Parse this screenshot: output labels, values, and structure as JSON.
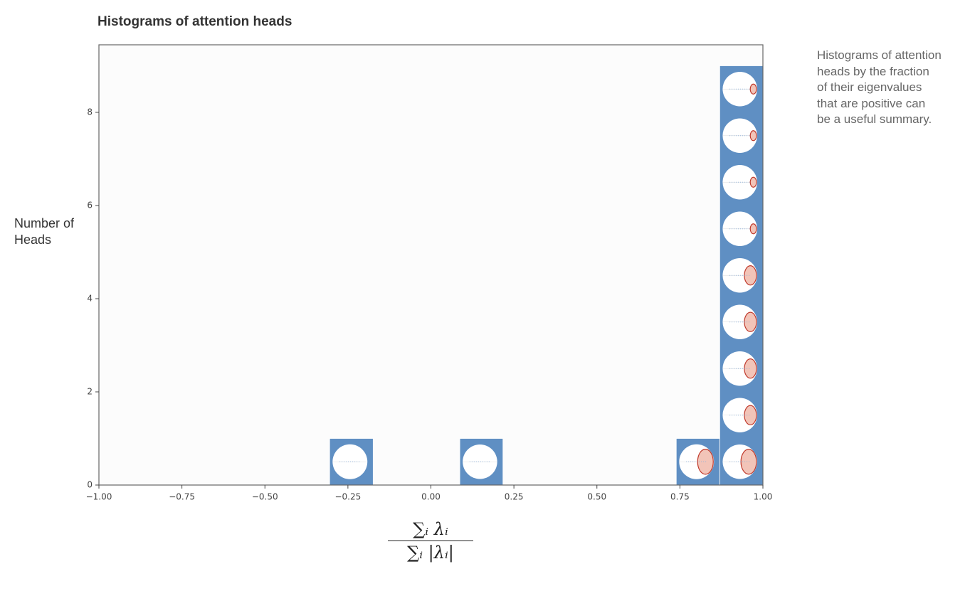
{
  "chart_data": {
    "type": "histogram",
    "title": "Histograms of attention heads",
    "ylabel": "Number of Heads",
    "xlabel_numerator": "∑ᵢ λᵢ",
    "xlabel_denominator": "∑ᵢ |λᵢ|",
    "annotation": "Histograms of attention heads by the fraction of their eigenvalues that are positive can be a useful summary.",
    "bins": [
      -0.305,
      -0.174,
      -0.044,
      0.087,
      0.217,
      0.348,
      0.478,
      0.609,
      0.739,
      0.87,
      1.0
    ],
    "values": [
      1,
      0,
      0,
      1,
      0,
      0,
      0,
      0,
      1,
      9
    ],
    "color": "#5f8fc3",
    "xlim": [
      -1,
      1
    ],
    "xticks": [
      {
        "value": -1,
        "label": "−1.00"
      },
      {
        "value": -0.75,
        "label": "−0.75"
      },
      {
        "value": -0.5,
        "label": "−0.50"
      },
      {
        "value": -0.25,
        "label": "−0.25"
      },
      {
        "value": 0,
        "label": "0.00"
      },
      {
        "value": 0.25,
        "label": "0.25"
      },
      {
        "value": 0.5,
        "label": "0.50"
      },
      {
        "value": 0.75,
        "label": "0.75"
      },
      {
        "value": 1,
        "label": "1.00"
      }
    ],
    "ylim": [
      0,
      9.45
    ],
    "yticks": [
      0,
      2,
      4,
      6,
      8
    ]
  }
}
